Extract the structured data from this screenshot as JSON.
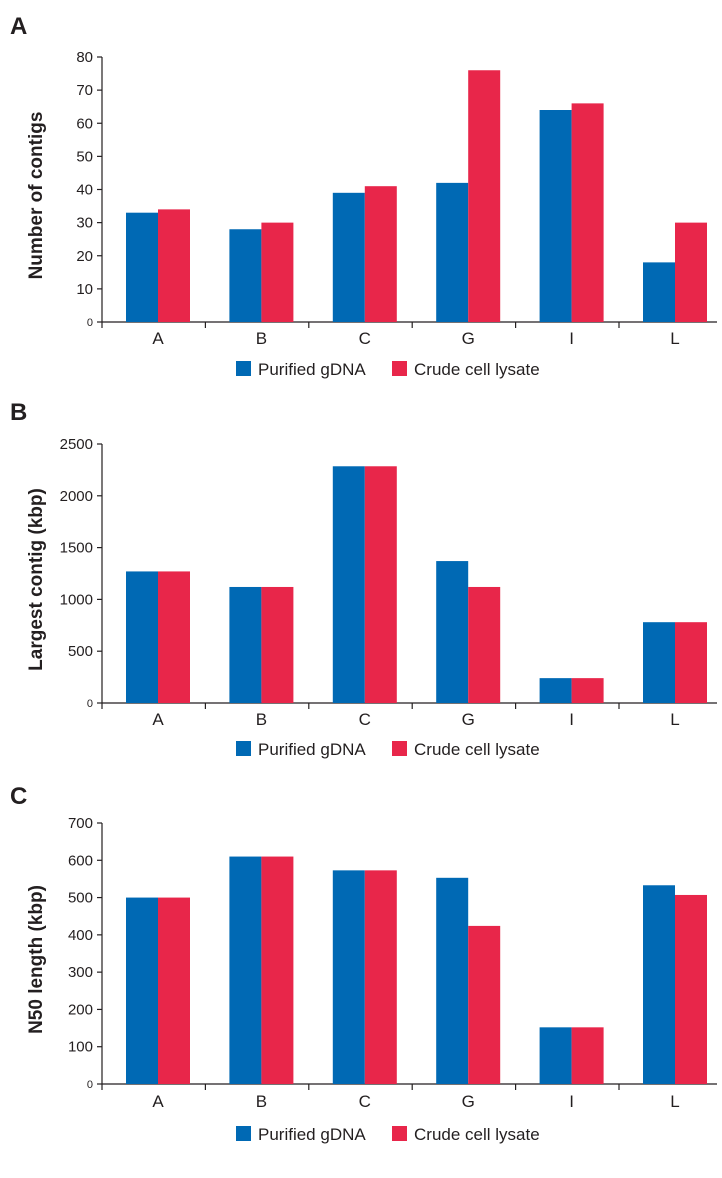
{
  "colors": {
    "purified": "#0069b4",
    "crude": "#e8264a",
    "axis": "#231f20"
  },
  "chart_data": [
    {
      "panel": "A",
      "type": "bar",
      "ylabel": "Number of contigs",
      "xlabel": "",
      "categories": [
        "A",
        "B",
        "C",
        "G",
        "I",
        "L"
      ],
      "ylim": [
        0,
        80
      ],
      "yticks": [
        "0",
        "10",
        "20",
        "30",
        "40",
        "50",
        "60",
        "70",
        "80"
      ],
      "legend_position": "bottom-center",
      "grid": false,
      "series": [
        {
          "name": "Purified gDNA",
          "color": "#0069b4",
          "values": [
            33,
            28,
            39,
            42,
            64,
            18
          ]
        },
        {
          "name": "Crude cell lysate",
          "color": "#e8264a",
          "values": [
            34,
            30,
            41,
            76,
            66,
            30
          ]
        }
      ]
    },
    {
      "panel": "B",
      "type": "bar",
      "ylabel": "Largest contig (kbp)",
      "xlabel": "",
      "categories": [
        "A",
        "B",
        "C",
        "G",
        "I",
        "L"
      ],
      "ylim": [
        0,
        2500
      ],
      "yticks": [
        "0",
        "500",
        "1000",
        "1500",
        "2000",
        "2500"
      ],
      "legend_position": "bottom-center",
      "grid": false,
      "series": [
        {
          "name": "Purified gDNA",
          "color": "#0069b4",
          "values": [
            1270,
            1120,
            2285,
            1370,
            240,
            780
          ]
        },
        {
          "name": "Crude cell lysate",
          "color": "#e8264a",
          "values": [
            1270,
            1120,
            2285,
            1120,
            240,
            780
          ]
        }
      ]
    },
    {
      "panel": "C",
      "type": "bar",
      "ylabel": "N50 length (kbp)",
      "xlabel": "",
      "categories": [
        "A",
        "B",
        "C",
        "G",
        "I",
        "L"
      ],
      "ylim": [
        0,
        700
      ],
      "yticks": [
        "0",
        "100",
        "200",
        "300",
        "400",
        "500",
        "600",
        "700"
      ],
      "legend_position": "bottom-center",
      "grid": false,
      "series": [
        {
          "name": "Purified gDNA",
          "color": "#0069b4",
          "values": [
            500,
            610,
            573,
            553,
            152,
            533
          ]
        },
        {
          "name": "Crude cell lysate",
          "color": "#e8264a",
          "values": [
            500,
            610,
            573,
            424,
            152,
            507
          ]
        }
      ]
    }
  ]
}
